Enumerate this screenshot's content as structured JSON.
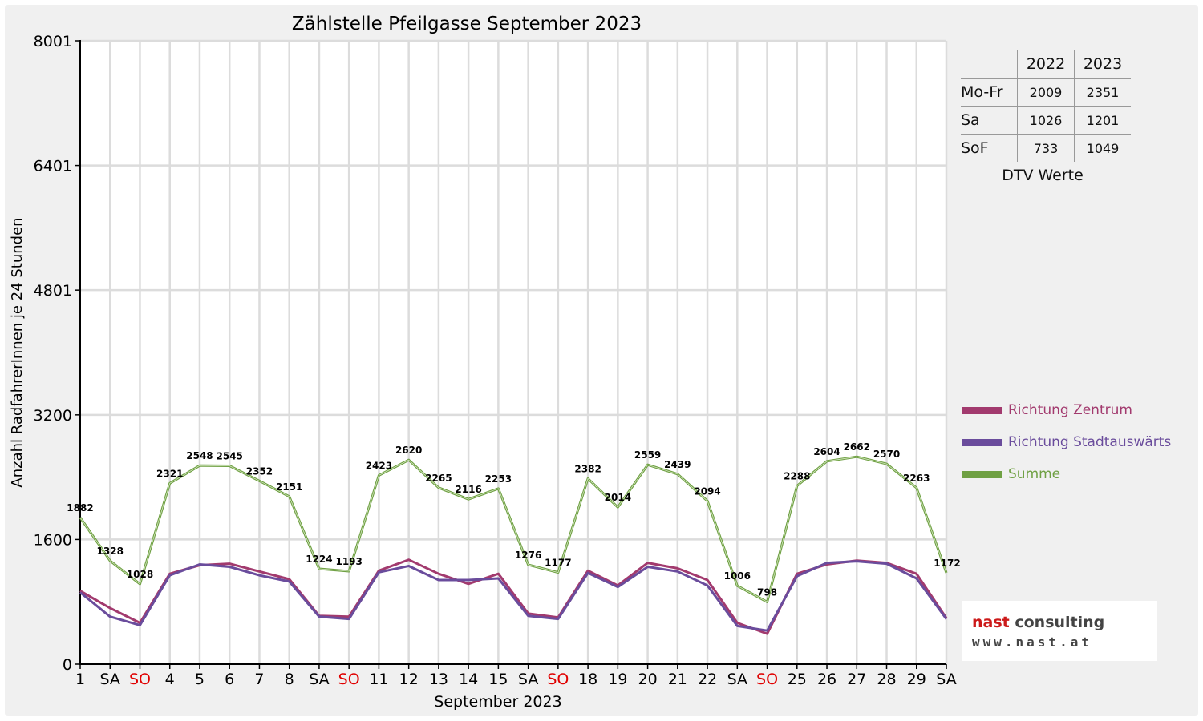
{
  "chart_data": {
    "type": "line",
    "title": "Zählstelle Pfeilgasse September 2023",
    "xlabel": "September 2023",
    "ylabel": "Anzahl RadfahrerInnen je 24 Stunden",
    "ylim": [
      0,
      8001
    ],
    "yticks": [
      "0",
      "1600",
      "3200",
      "4801",
      "6401",
      "8001"
    ],
    "categories": [
      "1",
      "SA",
      "SO",
      "4",
      "5",
      "6",
      "7",
      "8",
      "SA",
      "SO",
      "11",
      "12",
      "13",
      "14",
      "15",
      "SA",
      "SO",
      "18",
      "19",
      "20",
      "21",
      "22",
      "SA",
      "SO",
      "25",
      "26",
      "27",
      "28",
      "29",
      "SA"
    ],
    "weekend_color": "#e00000",
    "grid": true,
    "legend_position": "right",
    "series": [
      {
        "name": "Richtung Zentrum",
        "color": "#a23a6e",
        "values": [
          940,
          720,
          530,
          1160,
          1270,
          1290,
          1190,
          1090,
          620,
          610,
          1200,
          1340,
          1160,
          1030,
          1160,
          650,
          600,
          1200,
          1010,
          1300,
          1230,
          1080,
          530,
          390,
          1160,
          1280,
          1330,
          1300,
          1160,
          590
        ]
      },
      {
        "name": "Richtung Stadtauswärts",
        "color": "#6a4c9c",
        "values": [
          920,
          610,
          500,
          1140,
          1280,
          1250,
          1140,
          1060,
          610,
          580,
          1180,
          1260,
          1080,
          1080,
          1100,
          620,
          580,
          1170,
          990,
          1250,
          1190,
          1010,
          490,
          430,
          1130,
          1300,
          1320,
          1290,
          1100,
          580
        ]
      },
      {
        "name": "Summe",
        "color": "#6fa043",
        "values": [
          1882,
          1328,
          1028,
          2321,
          2548,
          2545,
          2352,
          2151,
          1224,
          1193,
          2423,
          2620,
          2265,
          2116,
          2253,
          1276,
          1177,
          2382,
          2014,
          2559,
          2439,
          2094,
          1006,
          798,
          2288,
          2604,
          2662,
          2570,
          2263,
          1172
        ]
      }
    ]
  },
  "dtv_table": {
    "headers": [
      "2022",
      "2023"
    ],
    "rows": [
      {
        "label": "Mo-Fr",
        "v2022": "2009",
        "v2023": "2351"
      },
      {
        "label": "Sa",
        "v2022": "1026",
        "v2023": "1201"
      },
      {
        "label": "SoF",
        "v2022": "733",
        "v2023": "1049"
      }
    ],
    "caption": "DTV Werte"
  },
  "logo": {
    "line1_a": "nast",
    "line1_b": " consulting",
    "line2": "www.nast.at",
    "accent_color": "#cc1a1a"
  }
}
